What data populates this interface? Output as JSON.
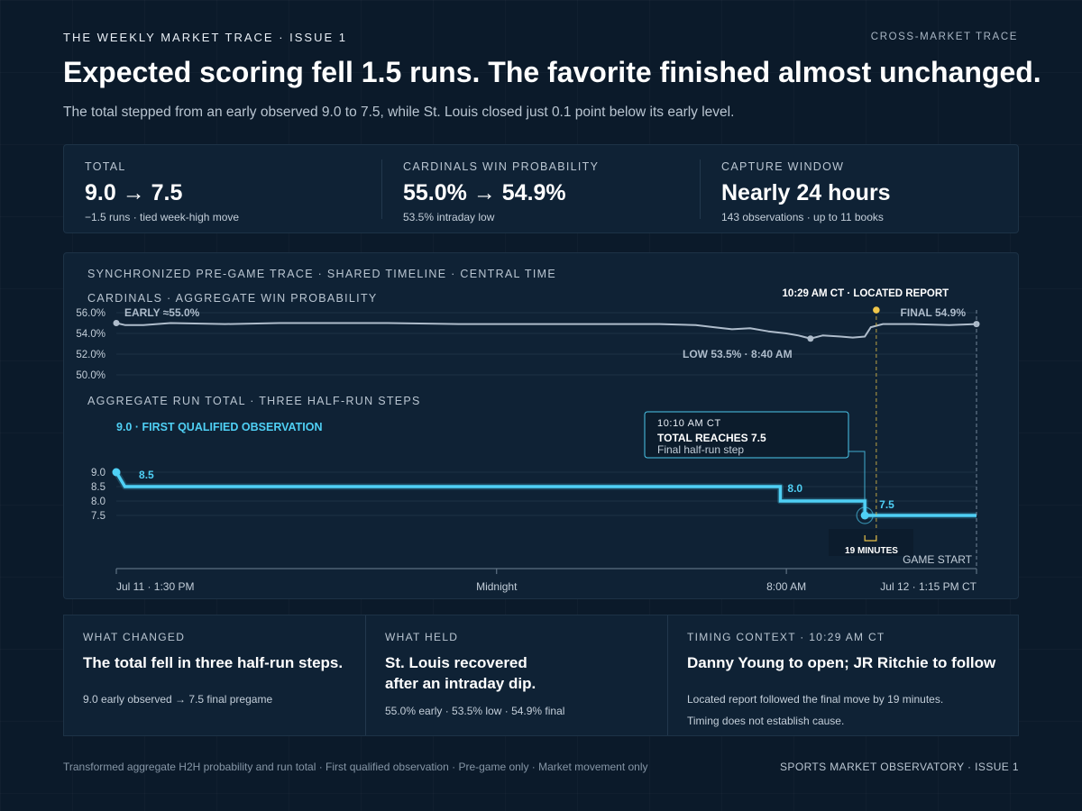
{
  "header": {
    "kicker": "THE WEEKLY MARKET TRACE · ISSUE 1",
    "kicker_right": "CROSS-MARKET TRACE",
    "headline": "Expected scoring fell 1.5 runs. The favorite finished almost unchanged.",
    "subhead": "The total stepped from an early observed 9.0 to 7.5, while St. Louis closed just 0.1 point below its early level."
  },
  "stats": [
    {
      "label": "TOTAL",
      "value": "9.0 → 7.5",
      "note": "−1.5 runs · tied week-high move"
    },
    {
      "label": "CARDINALS WIN PROBABILITY",
      "value": "55.0% → 54.9%",
      "note": "53.5% intraday low"
    },
    {
      "label": "CAPTURE WINDOW",
      "value": "Nearly 24 hours",
      "note": "143 observations · up to 11 books"
    }
  ],
  "chart_data": {
    "type": "line",
    "title": "SYNCHRONIZED PRE-GAME TRACE · SHARED TIMELINE · CENTRAL TIME",
    "x_axis": {
      "ticks": [
        "Jul 11 · 1:30 PM",
        "Midnight",
        "8:00 AM",
        "Jul 12 · 1:15 PM CT"
      ],
      "range": [
        "Jul 11 1:30 PM",
        "Jul 12 1:15 PM"
      ]
    },
    "panels": [
      {
        "title": "CARDINALS · AGGREGATE WIN PROBABILITY",
        "y_ticks": [
          "56.0%",
          "54.0%",
          "52.0%",
          "50.0%"
        ],
        "ylim": [
          50,
          56
        ],
        "series": [
          {
            "color": "#aebccb",
            "x": [
              "Jul 11 1:30 PM",
              "Jul 11 1:45 PM",
              "Jul 11 2:15 PM",
              "Jul 11 3:00 PM",
              "Jul 11 4:30 PM",
              "Jul 11 6:00 PM",
              "Jul 11 9:00 PM",
              "Jul 11 11:00 PM",
              "Jul 12 1:00 AM",
              "Jul 12 3:00 AM",
              "Jul 12 4:30 AM",
              "Jul 12 5:30 AM",
              "Jul 12 6:00 AM",
              "Jul 12 6:30 AM",
              "Jul 12 7:00 AM",
              "Jul 12 7:30 AM",
              "Jul 12 8:00 AM",
              "Jul 12 8:20 AM",
              "Jul 12 8:40 AM",
              "Jul 12 9:00 AM",
              "Jul 12 9:30 AM",
              "Jul 12 9:50 AM",
              "Jul 12 10:10 AM",
              "Jul 12 10:20 AM",
              "Jul 12 10:40 AM",
              "Jul 12 11:30 AM",
              "Jul 12 12:30 PM",
              "Jul 12 1:15 PM"
            ],
            "values": [
              55.0,
              54.8,
              54.8,
              55.0,
              54.9,
              55.0,
              55.0,
              54.9,
              54.9,
              54.9,
              54.9,
              54.8,
              54.6,
              54.4,
              54.5,
              54.2,
              54.0,
              53.8,
              53.5,
              53.8,
              53.7,
              53.6,
              53.7,
              54.6,
              54.9,
              54.9,
              54.8,
              54.9
            ]
          }
        ],
        "annotations": [
          {
            "text": "EARLY ≈55.0%"
          },
          {
            "text": "FINAL 54.9%"
          },
          {
            "text": "LOW 53.5% · 8:40 AM"
          },
          {
            "text": "10:29 AM CT · LOCATED REPORT"
          }
        ]
      },
      {
        "title": "AGGREGATE RUN TOTAL · THREE HALF-RUN STEPS",
        "y_ticks": [
          "9.0",
          "8.5",
          "8.0",
          "7.5"
        ],
        "ylim": [
          7.5,
          9.0
        ],
        "series": [
          {
            "color": "#4fd0f5",
            "x": [
              "Jul 11 1:30 PM",
              "Jul 11 1:45 PM",
              "Jul 12 7:50 AM",
              "Jul 12 10:10 AM",
              "Jul 12 1:15 PM"
            ],
            "values": [
              9.0,
              8.5,
              8.0,
              7.5,
              7.5
            ]
          }
        ],
        "data_labels": [
          "8.5",
          "8.0",
          "7.5"
        ],
        "annotations": [
          {
            "text": "9.0 · FIRST QUALIFIED OBSERVATION"
          },
          {
            "title": "10:10 AM CT",
            "headline": "TOTAL REACHES 7.5",
            "sub": "Final half-run step"
          },
          {
            "text": "19 MINUTES"
          },
          {
            "text": "GAME START"
          }
        ]
      }
    ]
  },
  "bottom": [
    {
      "label": "WHAT CHANGED",
      "title": "The total fell in three half-run steps.",
      "notes": [
        "9.0 early observed → 7.5 final pregame"
      ]
    },
    {
      "label": "WHAT HELD",
      "title_lines": [
        "St. Louis recovered",
        "after an intraday dip."
      ],
      "notes": [
        "55.0% early · 53.5% low · 54.9% final"
      ]
    },
    {
      "label": "TIMING CONTEXT · 10:29 AM CT",
      "title": "Danny Young to open; JR Ritchie to follow",
      "notes": [
        "Located report followed the final move by 19 minutes.",
        "Timing does not establish cause."
      ]
    }
  ],
  "footer": {
    "left": "Transformed aggregate H2H probability and run total · First qualified observation · Pre-game only · Market movement only",
    "right": "SPORTS MARKET OBSERVATORY · ISSUE 1"
  }
}
